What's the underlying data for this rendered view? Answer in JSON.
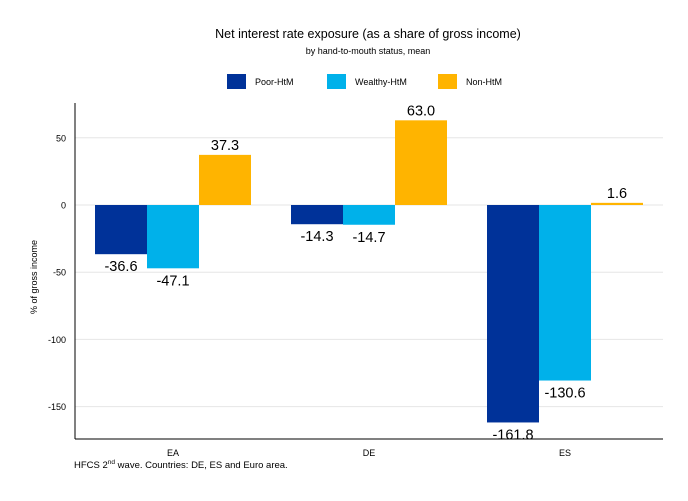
{
  "chart_data": {
    "type": "bar",
    "title": "Net interest rate exposure (as a share of gross income)",
    "subtitle": "by hand-to-mouth status, mean",
    "xlabel": "",
    "ylabel": "% of gross income",
    "ylim": [
      -175,
      75
    ],
    "yticks": [
      50,
      0,
      -50,
      -100,
      -150
    ],
    "grid": true,
    "legend_position": "top",
    "categories": [
      "EA",
      "DE",
      "ES"
    ],
    "series": [
      {
        "name": "Poor-HtM",
        "color": "#003299",
        "values": [
          -36.6,
          -14.3,
          -161.8
        ]
      },
      {
        "name": "Wealthy-HtM",
        "color": "#00b1ea",
        "values": [
          -47.1,
          -14.7,
          -130.6
        ]
      },
      {
        "name": "Non-HtM",
        "color": "#ffb400",
        "values": [
          37.3,
          63.0,
          1.6
        ]
      }
    ]
  },
  "footnote": {
    "prefix": "HFCS 2",
    "superscript": "nd",
    "suffix": " wave. Countries: DE, ES and Euro area."
  }
}
